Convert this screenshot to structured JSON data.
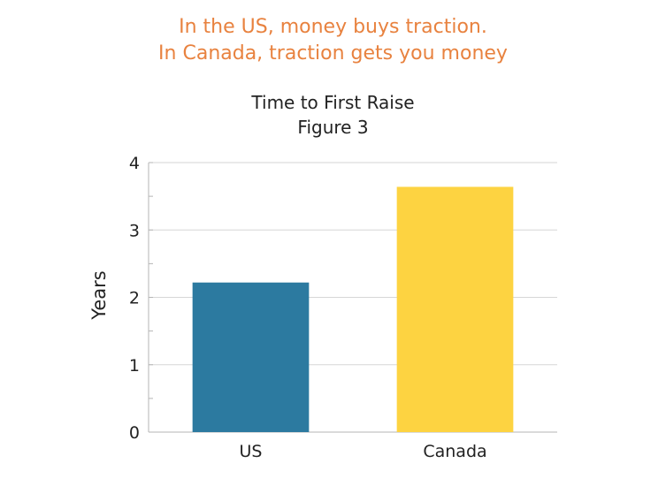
{
  "headline": {
    "line1": "In the US, money buys traction.",
    "line2": "In Canada, traction gets you money",
    "color": "#e8823f"
  },
  "chart_data": {
    "type": "bar",
    "title_line1": "Time to First Raise",
    "title_line2": "Figure 3",
    "categories": [
      "US",
      "Canada"
    ],
    "values": [
      2.22,
      3.64
    ],
    "colors": [
      "#2c7aa0",
      "#fdd341"
    ],
    "xlabel": "",
    "ylabel": "Years",
    "ylim": [
      0,
      4
    ],
    "yticks": [
      "0",
      "1",
      "2",
      "3",
      "4"
    ],
    "grid": true,
    "legend": "none"
  }
}
